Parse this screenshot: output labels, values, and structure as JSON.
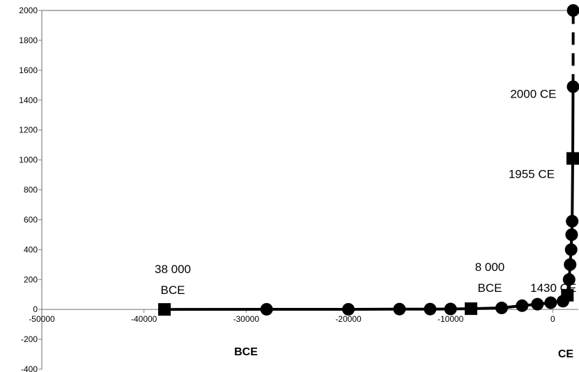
{
  "chart_data": {
    "type": "line",
    "title": "",
    "xlabel": "",
    "ylabel": "",
    "xlim": [
      -50000,
      2500
    ],
    "ylim": [
      -400,
      2000
    ],
    "x_ticks": [
      -50000,
      -40000,
      -30000,
      -20000,
      -10000,
      0
    ],
    "y_ticks": [
      -400,
      -200,
      0,
      200,
      400,
      600,
      800,
      1000,
      1200,
      1400,
      1600,
      1800,
      2000
    ],
    "x_tick_labels": [
      "-50000",
      "-40000",
      "-30000",
      "-20000",
      "-10000",
      "0"
    ],
    "y_tick_labels": [
      "-400",
      "-200",
      "0",
      "200",
      "400",
      "600",
      "800",
      "1000",
      "1200",
      "1400",
      "1600",
      "1800",
      "2000"
    ],
    "grid": false,
    "series": [
      {
        "line_style": "solid",
        "points": [
          {
            "x": -38000,
            "y": 0,
            "marker": "square"
          },
          {
            "x": -28000,
            "y": 1,
            "marker": "circle"
          },
          {
            "x": -20000,
            "y": 1,
            "marker": "circle"
          },
          {
            "x": -15000,
            "y": 2,
            "marker": "circle"
          },
          {
            "x": -12000,
            "y": 2,
            "marker": "circle"
          },
          {
            "x": -10000,
            "y": 3,
            "marker": "circle"
          },
          {
            "x": -8000,
            "y": 5,
            "marker": "square"
          },
          {
            "x": -5000,
            "y": 10,
            "marker": "circle"
          },
          {
            "x": -3000,
            "y": 25,
            "marker": "circle"
          },
          {
            "x": -1500,
            "y": 35,
            "marker": "circle"
          },
          {
            "x": -200,
            "y": 45,
            "marker": "circle"
          },
          {
            "x": 1000,
            "y": 55,
            "marker": "circle"
          },
          {
            "x": 1430,
            "y": 95,
            "marker": "square"
          },
          {
            "x": 1600,
            "y": 200,
            "marker": "circle"
          },
          {
            "x": 1700,
            "y": 300,
            "marker": "circle"
          },
          {
            "x": 1800,
            "y": 400,
            "marker": "circle"
          },
          {
            "x": 1850,
            "y": 500,
            "marker": "circle"
          },
          {
            "x": 1900,
            "y": 590,
            "marker": "circle"
          },
          {
            "x": 1955,
            "y": 1010,
            "marker": "square"
          },
          {
            "x": 1990,
            "y": 1490,
            "marker": "circle"
          }
        ]
      },
      {
        "line_style": "dashed",
        "points": [
          {
            "x": 1990,
            "y": 1490,
            "marker": "none"
          },
          {
            "x": 2000,
            "y": 2000,
            "marker": "circle"
          }
        ]
      }
    ],
    "annotations": [
      {
        "lines": [
          "38 000",
          "BCE"
        ],
        "x": -38000,
        "y": 0
      },
      {
        "lines": [
          "8 000",
          "BCE"
        ],
        "x": -8000,
        "y": 5
      },
      {
        "lines": [
          "1430 CE"
        ],
        "x": 1430,
        "y": 95
      },
      {
        "lines": [
          "1955 CE"
        ],
        "x": 1955,
        "y": 1010
      },
      {
        "lines": [
          "2000 CE"
        ],
        "x": 1990,
        "y": 1490
      }
    ],
    "era_labels": {
      "left": "BCE",
      "right": "CE"
    },
    "colors": {
      "line": "#000000",
      "axis": "#808080",
      "marker": "#000000"
    }
  }
}
